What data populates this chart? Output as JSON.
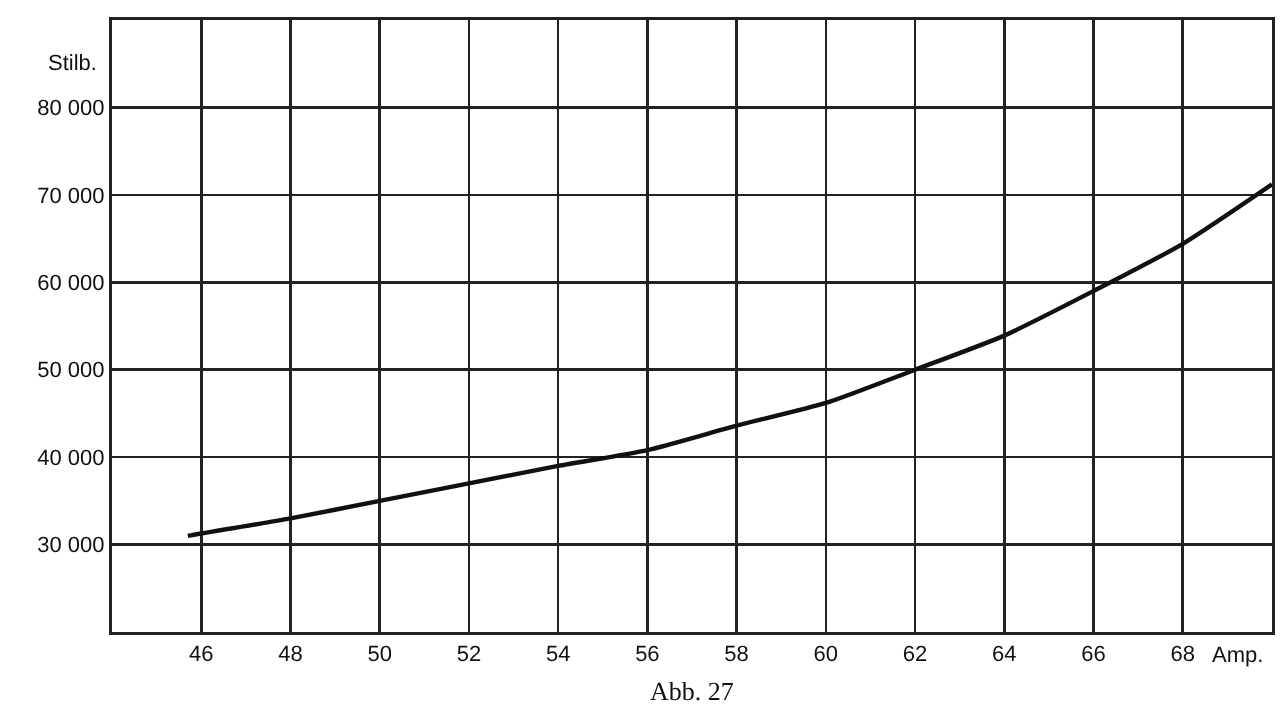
{
  "chart_data": {
    "type": "line",
    "title": "Abb. 27",
    "xlabel": "Amp.",
    "ylabel": "Stilb.",
    "x": [
      45.7,
      48,
      50,
      52,
      54,
      56,
      58,
      60,
      62,
      64,
      66,
      68,
      70
    ],
    "series": [
      {
        "color": "#111111",
        "values": [
          31000,
          33000,
          35000,
          37000,
          39000,
          40800,
          43600,
          46200,
          50000,
          53900,
          59000,
          64400,
          71200
        ]
      }
    ],
    "xlim": [
      44,
      70
    ],
    "xticks": [
      46,
      48,
      50,
      52,
      54,
      56,
      58,
      60,
      62,
      64,
      66,
      68
    ],
    "ylim": [
      20000,
      90000
    ],
    "yticks": [
      {
        "value": 30000,
        "label": "30 000"
      },
      {
        "value": 40000,
        "label": "40 000"
      },
      {
        "value": 50000,
        "label": "50 000"
      },
      {
        "value": 60000,
        "label": "60 000"
      },
      {
        "value": 70000,
        "label": "70 000"
      },
      {
        "value": 80000,
        "label": "80 000"
      }
    ],
    "grid": true,
    "marker": "none",
    "line_style": "solid"
  }
}
